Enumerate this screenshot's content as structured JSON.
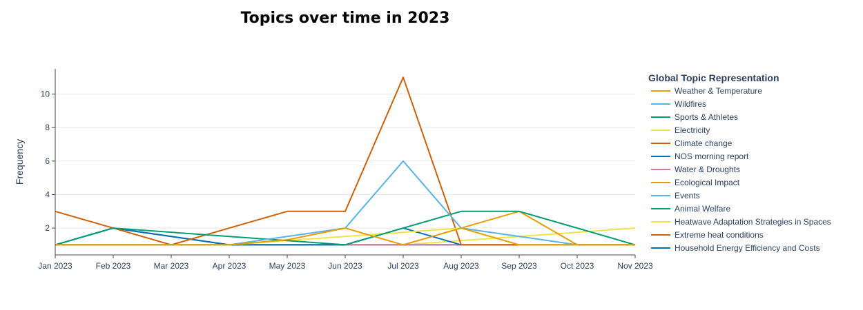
{
  "chart_data": {
    "type": "line",
    "title": "Topics over time in 2023",
    "xlabel": "",
    "ylabel": "Frequency",
    "categories": [
      "Jan 2023",
      "Feb 2023",
      "Mar 2023",
      "Apr 2023",
      "May 2023",
      "Jun 2023",
      "Jul 2023",
      "Aug 2023",
      "Sep 2023",
      "Oct 2023",
      "Nov 2023"
    ],
    "ylim": [
      0.4,
      11.5
    ],
    "yticks": [
      2,
      4,
      6,
      8,
      10
    ],
    "grid": true,
    "legend_title": "Global Topic Representation",
    "legend_position": "right",
    "series": [
      {
        "name": "Weather & Temperature",
        "color": "#E69F00",
        "points": [
          [
            "Jan 2023",
            1
          ],
          [
            "Feb 2023",
            1
          ],
          [
            "Mar 2023",
            1
          ],
          [
            "Apr 2023",
            1
          ],
          [
            "May 2023",
            1.3
          ],
          [
            "Jun 2023",
            2
          ],
          [
            "Jul 2023",
            1
          ],
          [
            "Aug 2023",
            2
          ],
          [
            "Sep 2023",
            1
          ],
          [
            "Oct 2023",
            1
          ],
          [
            "Nov 2023",
            1
          ]
        ]
      },
      {
        "name": "Wildfires",
        "color": "#56B4E9",
        "points": [
          [
            "Jan 2023",
            1
          ],
          [
            "Feb 2023",
            1
          ],
          [
            "Mar 2023",
            1
          ],
          [
            "Apr 2023",
            1
          ],
          [
            "May 2023",
            1.5
          ],
          [
            "Jun 2023",
            2
          ],
          [
            "Jul 2023",
            6
          ],
          [
            "Aug 2023",
            2
          ],
          [
            "Sep 2023",
            1.5
          ],
          [
            "Oct 2023",
            1
          ],
          [
            "Nov 2023",
            1
          ]
        ]
      },
      {
        "name": "Sports & Athletes",
        "color": "#009E73",
        "points": [
          [
            "Jan 2023",
            1
          ],
          [
            "Feb 2023",
            2
          ],
          [
            "Apr 2023",
            1.5
          ],
          [
            "Jun 2023",
            1
          ],
          [
            "Jul 2023",
            2
          ],
          [
            "Aug 2023",
            3
          ],
          [
            "Sep 2023",
            3
          ],
          [
            "Nov 2023",
            1
          ]
        ]
      },
      {
        "name": "Electricity",
        "color": "#F0E442",
        "points": [
          [
            "Jan 2023",
            1
          ],
          [
            "Feb 2023",
            1
          ],
          [
            "Mar 2023",
            1
          ],
          [
            "Apr 2023",
            1
          ],
          [
            "May 2023",
            1.25
          ],
          [
            "Jun 2023",
            1.5
          ],
          [
            "Jul 2023",
            1.75
          ],
          [
            "Aug 2023",
            2
          ],
          [
            "Sep 2023",
            1
          ],
          [
            "Oct 2023",
            1
          ],
          [
            "Nov 2023",
            1
          ]
        ]
      },
      {
        "name": "Climate change",
        "color": "#D55E00",
        "points": [
          [
            "Jan 2023",
            3
          ],
          [
            "Feb 2023",
            2
          ],
          [
            "Mar 2023",
            1
          ],
          [
            "Apr 2023",
            2
          ],
          [
            "May 2023",
            3
          ],
          [
            "Jun 2023",
            3
          ],
          [
            "Jul 2023",
            11
          ],
          [
            "Aug 2023",
            1
          ],
          [
            "Sep 2023",
            1
          ],
          [
            "Oct 2023",
            1
          ],
          [
            "Nov 2023",
            1
          ]
        ]
      },
      {
        "name": "NOS morning report",
        "color": "#0072B2",
        "points": [
          [
            "Jan 2023",
            1
          ],
          [
            "Feb 2023",
            2
          ],
          [
            "Apr 2023",
            1
          ],
          [
            "Jun 2023",
            1
          ],
          [
            "Jul 2023",
            2
          ],
          [
            "Aug 2023",
            1
          ]
        ]
      },
      {
        "name": "Water & Droughts",
        "color": "#CC79A7",
        "points": [
          [
            "Jan 2023",
            1
          ],
          [
            "Nov 2023",
            1
          ]
        ]
      },
      {
        "name": "Ecological Impact",
        "color": "#E69F00",
        "points": [
          [
            "Jan 2023",
            1
          ],
          [
            "Jul 2023",
            1
          ],
          [
            "Aug 2023",
            2
          ],
          [
            "Sep 2023",
            3
          ],
          [
            "Oct 2023",
            1
          ],
          [
            "Nov 2023",
            1
          ]
        ]
      },
      {
        "name": "Events",
        "color": "#56B4E9",
        "points": [
          [
            "Jan 2023",
            1
          ],
          [
            "Nov 2023",
            1
          ]
        ]
      },
      {
        "name": "Animal Welfare",
        "color": "#009E73",
        "points": [
          [
            "Jan 2023",
            1
          ],
          [
            "Nov 2023",
            1
          ]
        ]
      },
      {
        "name": "Heatwave Adaptation Strategies in Spaces",
        "color": "#F0E442",
        "points": [
          [
            "Jul 2023",
            1
          ],
          [
            "Aug 2023",
            1.25
          ],
          [
            "Sep 2023",
            1.5
          ],
          [
            "Oct 2023",
            1.75
          ],
          [
            "Nov 2023",
            2
          ]
        ]
      },
      {
        "name": "Extreme heat conditions",
        "color": "#D55E00",
        "points": [
          [
            "Jan 2023",
            1
          ],
          [
            "Nov 2023",
            1
          ]
        ]
      },
      {
        "name": "Household Energy Efficiency and Costs",
        "color": "#0072B2",
        "points": [
          [
            "Jan 2023",
            1
          ],
          [
            "Feb 2023",
            2
          ],
          [
            "Apr 2023",
            1
          ]
        ]
      }
    ]
  }
}
